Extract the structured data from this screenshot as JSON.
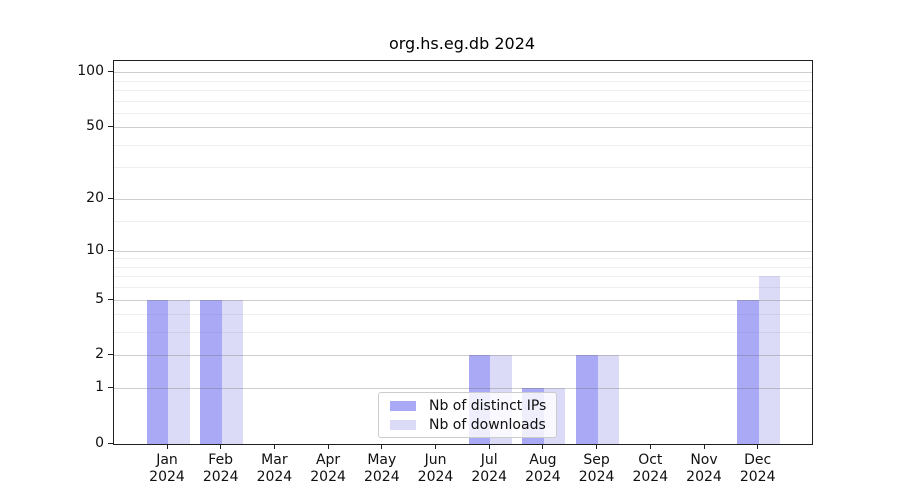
{
  "chart_data": {
    "type": "bar",
    "title": "org.hs.eg.db 2024",
    "categories": [
      "Jan",
      "Feb",
      "Mar",
      "Apr",
      "May",
      "Jun",
      "Jul",
      "Aug",
      "Sep",
      "Oct",
      "Nov",
      "Dec"
    ],
    "x_tick_sublabel": "2024",
    "series": [
      {
        "name": "Nb of distinct IPs",
        "color": "#a9a9f5",
        "values": [
          5,
          5,
          0,
          0,
          0,
          0,
          2,
          1,
          2,
          0,
          0,
          5
        ]
      },
      {
        "name": "Nb of downloads",
        "color": "#dbdbf8",
        "values": [
          5,
          5,
          0,
          0,
          0,
          0,
          2,
          1,
          2,
          0,
          0,
          7
        ]
      }
    ],
    "yscale": "log1p",
    "ylim": [
      0,
      115
    ],
    "ytick_labels": [
      0,
      1,
      2,
      5,
      10,
      20,
      50,
      100
    ],
    "minor_gridlines": [
      3,
      4,
      6,
      7,
      8,
      9,
      15,
      30,
      40,
      60,
      70,
      80,
      90
    ],
    "grid": true,
    "legend": {
      "position": "lower-center",
      "frame_alpha": 0.8
    },
    "colors": {
      "spine": "#1f1f1f",
      "grid_major": "#d2d2d2",
      "grid_minor": "#eeeeee",
      "background": "#ffffff"
    }
  }
}
